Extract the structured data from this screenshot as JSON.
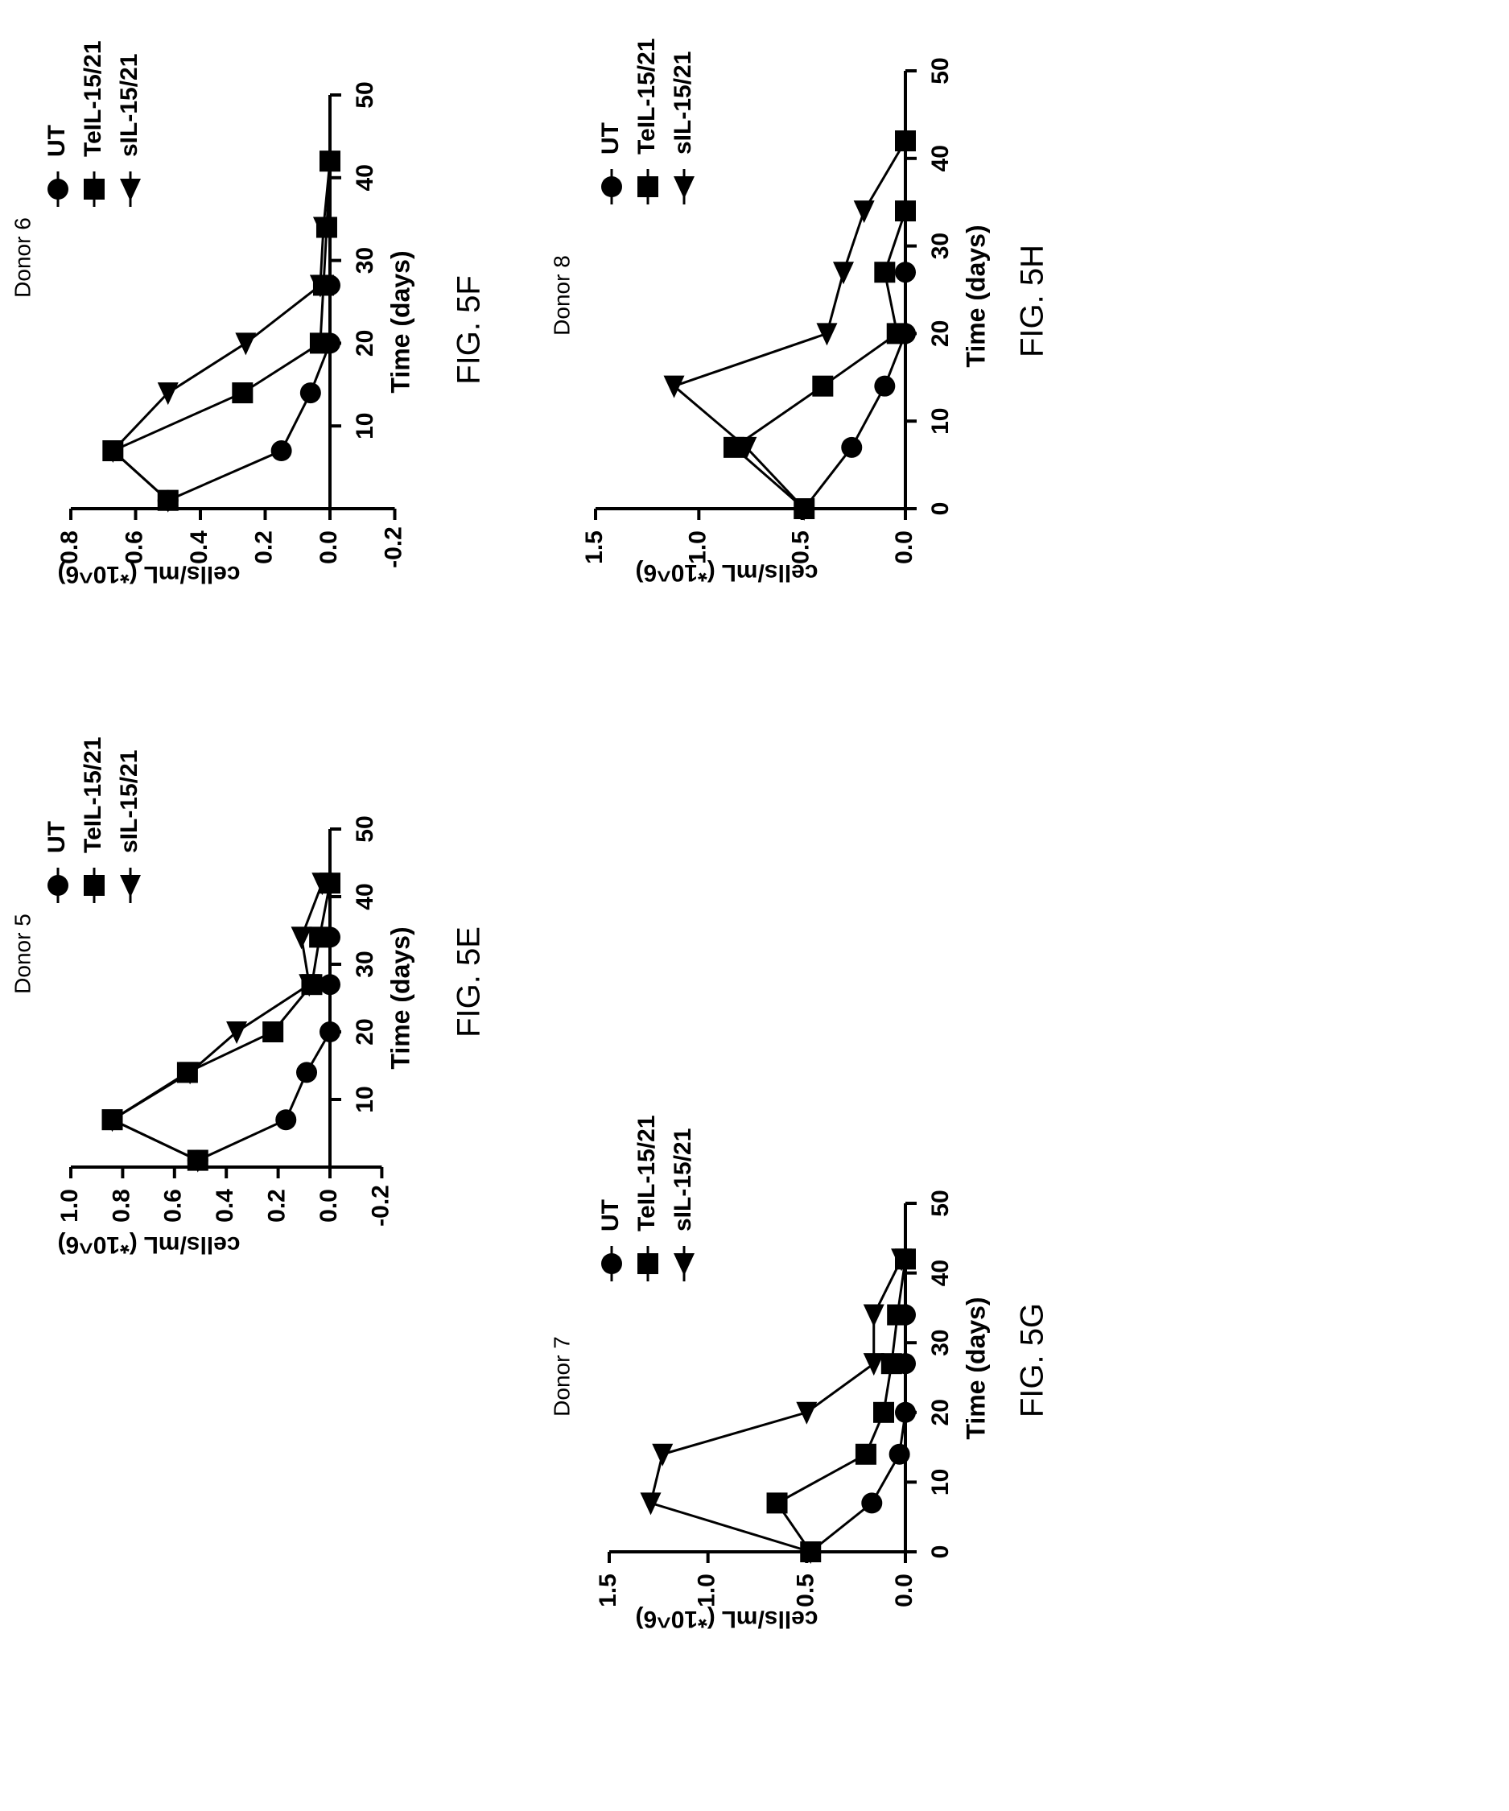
{
  "chart_data": [
    {
      "type": "line",
      "title": "Donor 5",
      "figure_label": "FIG. 5E",
      "xlabel": "Time (days)",
      "ylabel": "cells/mL (*10^6)",
      "xlim": [
        0,
        50
      ],
      "ylim": [
        -0.2,
        1.0
      ],
      "xticks": [
        10,
        20,
        30,
        40,
        50
      ],
      "yticks": [
        1.0,
        0.8,
        0.6,
        0.4,
        0.2,
        0.0,
        -0.2
      ],
      "ytick_labels": [
        "1.0",
        "0.8",
        "0.6",
        "0.4",
        "0.2",
        "0.0",
        "-0.2"
      ],
      "legend": [
        "UT",
        "TeIL-15/21",
        "sIL-15/21"
      ],
      "series": [
        {
          "name": "UT",
          "marker": "circle",
          "x": [
            1,
            7,
            14,
            20,
            27,
            34
          ],
          "y": [
            0.51,
            0.17,
            0.09,
            0.0,
            0.0,
            0.0
          ]
        },
        {
          "name": "TeIL-15/21",
          "marker": "square",
          "x": [
            1,
            7,
            14,
            20,
            27,
            34,
            42
          ],
          "y": [
            0.51,
            0.84,
            0.55,
            0.22,
            0.07,
            0.04,
            0.0
          ]
        },
        {
          "name": "sIL-15/21",
          "marker": "triangle",
          "x": [
            1,
            7,
            14,
            20,
            27,
            34,
            42
          ],
          "y": [
            0.51,
            0.84,
            0.54,
            0.36,
            0.08,
            0.11,
            0.03
          ]
        }
      ]
    },
    {
      "type": "line",
      "title": "Donor 6",
      "figure_label": "FIG. 5F",
      "xlabel": "Time (days)",
      "ylabel": "cells/mL (*10^6)",
      "xlim": [
        0,
        50
      ],
      "ylim": [
        -0.2,
        0.8
      ],
      "xticks": [
        10,
        20,
        30,
        40,
        50
      ],
      "yticks": [
        0.8,
        0.6,
        0.4,
        0.2,
        0.0,
        -0.2
      ],
      "ytick_labels": [
        "0.8",
        "0.6",
        "0.4",
        "0.2",
        "0.0",
        "-0.2"
      ],
      "legend": [
        "UT",
        "TeIL-15/21",
        "sIL-15/21"
      ],
      "series": [
        {
          "name": "UT",
          "marker": "circle",
          "x": [
            1,
            7,
            14,
            20,
            27
          ],
          "y": [
            0.5,
            0.15,
            0.06,
            0.0,
            0.0
          ]
        },
        {
          "name": "TeIL-15/21",
          "marker": "square",
          "x": [
            1,
            7,
            14,
            20,
            27,
            34,
            42
          ],
          "y": [
            0.5,
            0.67,
            0.27,
            0.03,
            0.02,
            0.01,
            0.0
          ]
        },
        {
          "name": "sIL-15/21",
          "marker": "triangle",
          "x": [
            1,
            7,
            14,
            20,
            27,
            34,
            42
          ],
          "y": [
            0.5,
            0.67,
            0.5,
            0.26,
            0.03,
            0.02,
            0.0
          ]
        }
      ]
    },
    {
      "type": "line",
      "title": "Donor 7",
      "figure_label": "FIG. 5G",
      "xlabel": "Time (days)",
      "ylabel": "cells/mL (*10^6)",
      "xlim": [
        0,
        50
      ],
      "ylim": [
        0.0,
        1.5
      ],
      "xticks": [
        0,
        10,
        20,
        30,
        40,
        50
      ],
      "yticks": [
        1.5,
        1.0,
        0.5,
        0.0
      ],
      "ytick_labels": [
        "1.5",
        "1.0",
        "0.5",
        "0.0"
      ],
      "legend": [
        "UT",
        "TeIL-15/21",
        "sIL-15/21"
      ],
      "series": [
        {
          "name": "UT",
          "marker": "circle",
          "x": [
            0,
            7,
            14,
            20,
            27,
            34
          ],
          "y": [
            0.48,
            0.17,
            0.03,
            0.0,
            0.0,
            0.0
          ]
        },
        {
          "name": "TeIL-15/21",
          "marker": "square",
          "x": [
            0,
            7,
            14,
            20,
            27,
            34,
            42
          ],
          "y": [
            0.48,
            0.65,
            0.2,
            0.11,
            0.07,
            0.04,
            0.0
          ]
        },
        {
          "name": "sIL-15/21",
          "marker": "triangle",
          "x": [
            0,
            7,
            14,
            20,
            27,
            34,
            42
          ],
          "y": [
            0.48,
            1.29,
            1.23,
            0.5,
            0.16,
            0.16,
            0.02
          ]
        }
      ]
    },
    {
      "type": "line",
      "title": "Donor 8",
      "figure_label": "FIG. 5H",
      "xlabel": "Time (days)",
      "ylabel": "cells/mL (*10^6)",
      "xlim": [
        0,
        50
      ],
      "ylim": [
        0.0,
        1.5
      ],
      "xticks": [
        0,
        10,
        20,
        30,
        40,
        50
      ],
      "yticks": [
        1.5,
        1.0,
        0.5,
        0.0
      ],
      "ytick_labels": [
        "1.5",
        "1.0",
        "0.5",
        "0.0"
      ],
      "legend": [
        "UT",
        "TeIL-15/21",
        "sIL-15/21"
      ],
      "series": [
        {
          "name": "UT",
          "marker": "circle",
          "x": [
            0,
            7,
            14,
            20,
            27
          ],
          "y": [
            0.49,
            0.26,
            0.1,
            0.0,
            0.0
          ]
        },
        {
          "name": "TeIL-15/21",
          "marker": "square",
          "x": [
            0,
            7,
            14,
            20,
            27,
            34,
            42
          ],
          "y": [
            0.49,
            0.83,
            0.4,
            0.04,
            0.1,
            0.0,
            0.0
          ]
        },
        {
          "name": "sIL-15/21",
          "marker": "triangle",
          "x": [
            0,
            7,
            14,
            20,
            27,
            34,
            42
          ],
          "y": [
            0.49,
            0.77,
            1.12,
            0.38,
            0.3,
            0.2,
            0.0
          ]
        }
      ]
    }
  ]
}
